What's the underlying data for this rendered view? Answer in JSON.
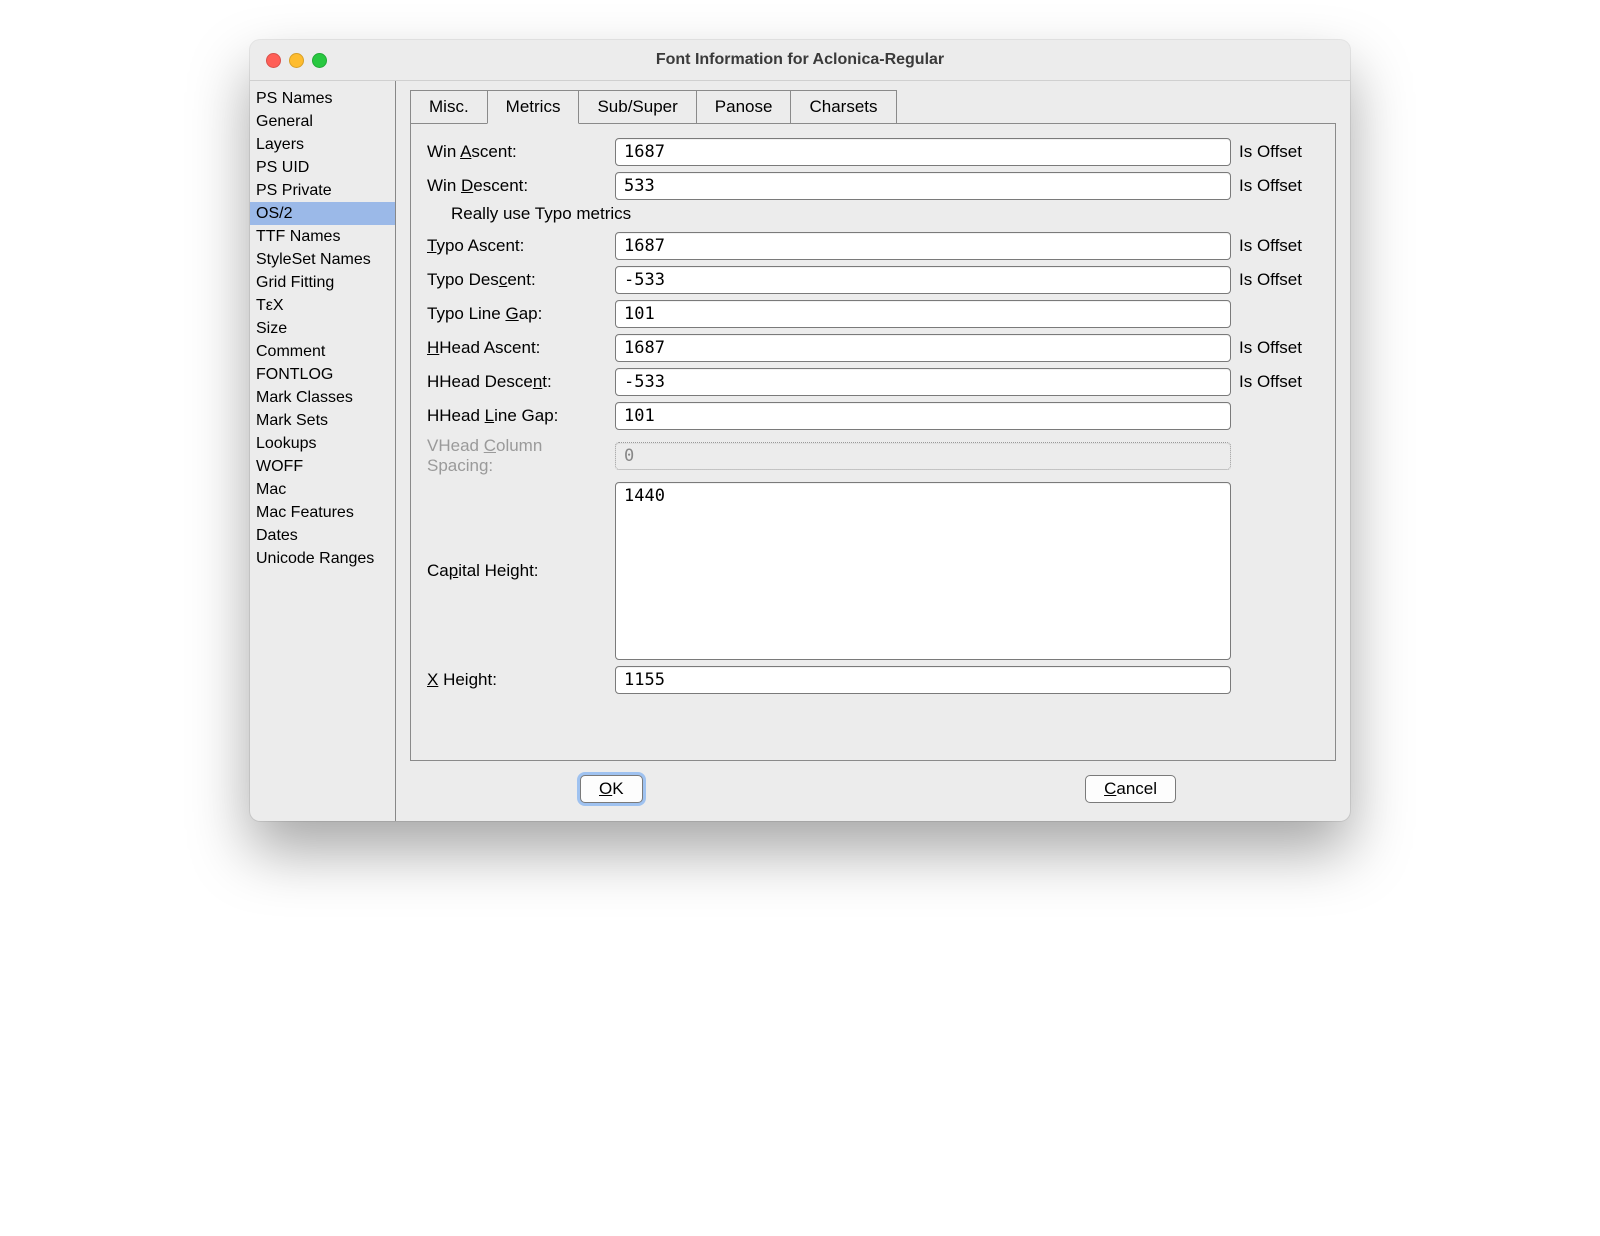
{
  "window": {
    "title": "Font Information for Aclonica-Regular"
  },
  "sidebar": {
    "items": [
      "PS Names",
      "General",
      "Layers",
      "PS UID",
      "PS Private",
      "OS/2",
      "TTF Names",
      "StyleSet Names",
      "Grid Fitting",
      "TεX",
      "Size",
      "Comment",
      "FONTLOG",
      "Mark Classes",
      "Mark Sets",
      "Lookups",
      "WOFF",
      "Mac",
      "Mac Features",
      "Dates",
      "Unicode Ranges"
    ],
    "selected_index": 5
  },
  "tabs": {
    "items": [
      "Misc.",
      "Metrics",
      "Sub/Super",
      "Panose",
      "Charsets"
    ],
    "active_index": 1
  },
  "metrics": {
    "offset_label": "Is Offset",
    "really_use_typo": "Really use Typo metrics",
    "fields": {
      "win_ascent": {
        "label_pre": "Win ",
        "u": "A",
        "label_post": "scent:",
        "value": "1687",
        "offset": true
      },
      "win_descent": {
        "label_pre": "Win ",
        "u": "D",
        "label_post": "escent:",
        "value": "533",
        "offset": true
      },
      "typo_ascent": {
        "label_pre": "",
        "u": "T",
        "label_post": "ypo Ascent:",
        "value": "1687",
        "offset": true
      },
      "typo_descent": {
        "label_pre": "Typo Des",
        "u": "c",
        "label_post": "ent:",
        "value": "-533",
        "offset": true
      },
      "typo_line_gap": {
        "label_pre": "Typo Line ",
        "u": "G",
        "label_post": "ap:",
        "value": "101",
        "offset": false
      },
      "hhead_ascent": {
        "label_pre": "",
        "u": "H",
        "label_post": "Head Ascent:",
        "value": "1687",
        "offset": true
      },
      "hhead_descent": {
        "label_pre": "HHead Desce",
        "u": "n",
        "label_post": "t:",
        "value": "-533",
        "offset": true
      },
      "hhead_line_gap": {
        "label_pre": "HHead ",
        "u": "L",
        "label_post": "ine Gap:",
        "value": "101",
        "offset": false
      },
      "vhead_col_spacing": {
        "label_pre": "VHead ",
        "u": "C",
        "label_post": "olumn Spacing:",
        "value": "0",
        "offset": false,
        "disabled": true
      },
      "capital_height": {
        "label_pre": "Ca",
        "u": "p",
        "label_post": "ital Height:",
        "value": "1440",
        "offset": false,
        "textarea": true
      },
      "x_height": {
        "label_pre": "",
        "u": "X",
        "label_post": " Height:",
        "value": "1155",
        "offset": false
      }
    }
  },
  "buttons": {
    "ok": "OK",
    "cancel": "Cancel",
    "ok_u": "O",
    "cancel_u": "C"
  }
}
